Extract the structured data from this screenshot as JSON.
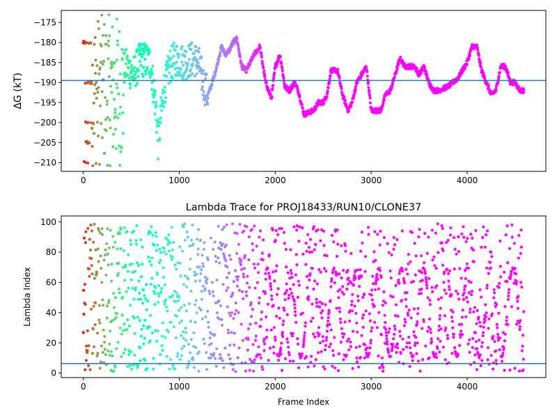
{
  "chart_data": [
    {
      "type": "scatter",
      "title": "",
      "xlabel": "",
      "ylabel": "ΔG (kT)",
      "xlim": [
        -230,
        4820
      ],
      "ylim": [
        -212.2,
        -172
      ],
      "xticks": [
        0,
        1000,
        2000,
        3000,
        4000
      ],
      "xtick_labels": [
        "0",
        "1000",
        "2000",
        "3000",
        "4000"
      ],
      "yticks": [
        -210,
        -205,
        -200,
        -195,
        -190,
        -185,
        -180,
        -175
      ],
      "ytick_labels": [
        "−210",
        "−205",
        "−200",
        "−195",
        "−190",
        "−185",
        "−180",
        "−175"
      ],
      "hline": {
        "y": -189.5,
        "color": "#1f77b4"
      },
      "color_scale": "rainbow (red at frame 0 → violet at later frames)",
      "trace": [
        [
          0,
          -190
        ],
        [
          60,
          -188
        ],
        [
          90,
          -186
        ],
        [
          120,
          -189
        ],
        [
          150,
          -195
        ],
        [
          200,
          -186
        ],
        [
          260,
          -190
        ],
        [
          320,
          -189
        ],
        [
          380,
          -187
        ],
        [
          450,
          -186
        ],
        [
          520,
          -188
        ],
        [
          600,
          -184
        ],
        [
          700,
          -185
        ],
        [
          760,
          -197
        ],
        [
          780,
          -205
        ],
        [
          800,
          -200
        ],
        [
          840,
          -192
        ],
        [
          900,
          -186
        ],
        [
          960,
          -184
        ],
        [
          1050,
          -185
        ],
        [
          1150,
          -184
        ],
        [
          1200,
          -185
        ],
        [
          1250,
          -190
        ],
        [
          1300,
          -193
        ],
        [
          1330,
          -191
        ],
        [
          1380,
          -187
        ],
        [
          1420,
          -183
        ],
        [
          1440,
          -181
        ],
        [
          1480,
          -183
        ],
        [
          1520,
          -182
        ],
        [
          1560,
          -180
        ],
        [
          1600,
          -179
        ],
        [
          1650,
          -186
        ],
        [
          1700,
          -187
        ],
        [
          1780,
          -183
        ],
        [
          1840,
          -181
        ],
        [
          1900,
          -190
        ],
        [
          1960,
          -194
        ],
        [
          2000,
          -186
        ],
        [
          2050,
          -183
        ],
        [
          2100,
          -191
        ],
        [
          2150,
          -192
        ],
        [
          2200,
          -190
        ],
        [
          2240,
          -192
        ],
        [
          2280,
          -196
        ],
        [
          2300,
          -198
        ],
        [
          2400,
          -197
        ],
        [
          2450,
          -195
        ],
        [
          2500,
          -195
        ],
        [
          2540,
          -193
        ],
        [
          2580,
          -187
        ],
        [
          2650,
          -187
        ],
        [
          2700,
          -193
        ],
        [
          2760,
          -197
        ],
        [
          2800,
          -195
        ],
        [
          2850,
          -190
        ],
        [
          2900,
          -188
        ],
        [
          2950,
          -186
        ],
        [
          3000,
          -197
        ],
        [
          3100,
          -197
        ],
        [
          3150,
          -193
        ],
        [
          3200,
          -192
        ],
        [
          3300,
          -184
        ],
        [
          3350,
          -186
        ],
        [
          3400,
          -186
        ],
        [
          3450,
          -186
        ],
        [
          3500,
          -188
        ],
        [
          3550,
          -186
        ],
        [
          3600,
          -190
        ],
        [
          3650,
          -192
        ],
        [
          3700,
          -192
        ],
        [
          3800,
          -191
        ],
        [
          3850,
          -190
        ],
        [
          3900,
          -189
        ],
        [
          3950,
          -187
        ],
        [
          4000,
          -185
        ],
        [
          4050,
          -181
        ],
        [
          4100,
          -181
        ],
        [
          4150,
          -187
        ],
        [
          4200,
          -190
        ],
        [
          4250,
          -193
        ],
        [
          4300,
          -192
        ],
        [
          4350,
          -186
        ],
        [
          4400,
          -186
        ],
        [
          4450,
          -190
        ],
        [
          4500,
          -190
        ],
        [
          4550,
          -192
        ],
        [
          4590,
          -192
        ]
      ]
    },
    {
      "type": "scatter",
      "title": "Lambda Trace for PROJ18433/RUN10/CLONE37",
      "xlabel": "Frame Index",
      "ylabel": "Lambda Index",
      "xlim": [
        -230,
        4820
      ],
      "ylim": [
        -3,
        104
      ],
      "xticks": [
        0,
        1000,
        2000,
        3000,
        4000
      ],
      "xtick_labels": [
        "0",
        "1000",
        "2000",
        "3000",
        "4000"
      ],
      "yticks": [
        0,
        20,
        40,
        60,
        80,
        100
      ],
      "ytick_labels": [
        "0",
        "20",
        "40",
        "60",
        "80",
        "100"
      ],
      "hline": {
        "y": 6.3,
        "color": "#1f77b4"
      },
      "color_scale": "rainbow (red at frame 0 → violet at later frames)",
      "value_range": [
        1,
        99
      ],
      "x_range": [
        0,
        4590
      ]
    }
  ]
}
